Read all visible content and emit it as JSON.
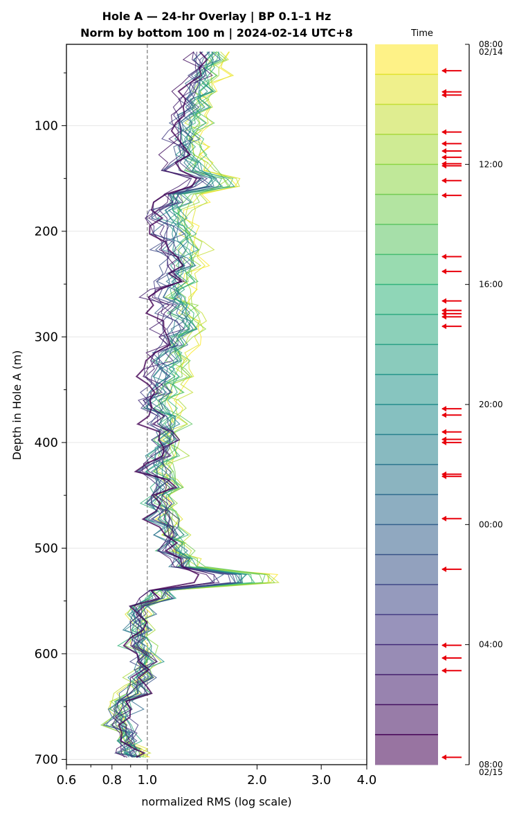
{
  "chart_data": {
    "type": "line",
    "title_line1": "Hole A — 24-hr Overlay  |  BP 0.1–1 Hz",
    "title_line2": "Norm by bottom 100 m  |  2024-02-14 UTC+8",
    "xlabel": "normalized RMS  (log scale)",
    "ylabel": "Depth in Hole A (m)",
    "x_scale": "log",
    "xlim": [
      0.6,
      4.0
    ],
    "ylim": [
      705,
      23
    ],
    "x_ticks": [
      0.6,
      0.8,
      1.0,
      2.0,
      3.0,
      4.0
    ],
    "x_tick_labels": [
      "0.6",
      "0.8",
      "1.0",
      "2.0",
      "3.0",
      "4.0"
    ],
    "y_ticks": [
      100,
      200,
      300,
      400,
      500,
      600,
      700
    ],
    "y_tick_labels": [
      "100",
      "200",
      "300",
      "400",
      "500",
      "600",
      "700"
    ],
    "reference_line_x": 1.0,
    "grid": "horizontal",
    "profile_count": 24,
    "depths": [
      30,
      45,
      60,
      75,
      90,
      105,
      120,
      135,
      150,
      165,
      180,
      195,
      210,
      225,
      240,
      255,
      270,
      285,
      300,
      315,
      330,
      345,
      360,
      375,
      390,
      405,
      420,
      435,
      450,
      465,
      480,
      495,
      510,
      525,
      540,
      555,
      570,
      585,
      600,
      615,
      630,
      645,
      660,
      675,
      690,
      698
    ],
    "base_profile": [
      1.32,
      1.28,
      1.25,
      1.22,
      1.18,
      1.12,
      1.15,
      1.1,
      1.25,
      1.05,
      0.97,
      1.0,
      1.05,
      1.12,
      1.08,
      1.0,
      1.06,
      1.05,
      1.03,
      0.99,
      0.97,
      1.0,
      0.93,
      1.05,
      1.1,
      1.03,
      0.99,
      1.06,
      1.03,
      1.09,
      1.13,
      1.12,
      1.18,
      1.28,
      1.05,
      0.93,
      0.95,
      0.94,
      0.98,
      0.97,
      0.96,
      0.9,
      0.85,
      0.88,
      0.86,
      0.87
    ],
    "late_profile": [
      1.65,
      1.55,
      1.48,
      1.45,
      1.4,
      1.38,
      1.42,
      1.5,
      1.75,
      1.35,
      1.32,
      1.35,
      1.38,
      1.33,
      1.28,
      1.32,
      1.36,
      1.4,
      1.33,
      1.28,
      1.25,
      1.22,
      1.18,
      1.2,
      1.15,
      1.18,
      1.14,
      1.16,
      1.12,
      1.15,
      1.2,
      1.25,
      1.35,
      2.3,
      1.1,
      0.97,
      0.95,
      0.95,
      1.0,
      0.98,
      0.9,
      0.82,
      0.82,
      0.9,
      0.95,
      0.98
    ],
    "color_stops": [
      "#fde725",
      "#90d743",
      "#35b779",
      "#21918c",
      "#31688e",
      "#443983",
      "#440154"
    ],
    "colorbar": {
      "label": "Time",
      "bands": 24,
      "time_ticks": [
        "08:00",
        "12:00",
        "16:00",
        "20:00",
        "00:00",
        "04:00",
        "08:00"
      ],
      "date_labels": [
        "02/14",
        "02/15"
      ]
    },
    "event_markers_depth": [
      48,
      68,
      71,
      106,
      117,
      124,
      130,
      136,
      138,
      152,
      166,
      224,
      238,
      266,
      275,
      278,
      281,
      290,
      368,
      374,
      390,
      397,
      400,
      430,
      432,
      472,
      520,
      592,
      604,
      616,
      698
    ]
  }
}
